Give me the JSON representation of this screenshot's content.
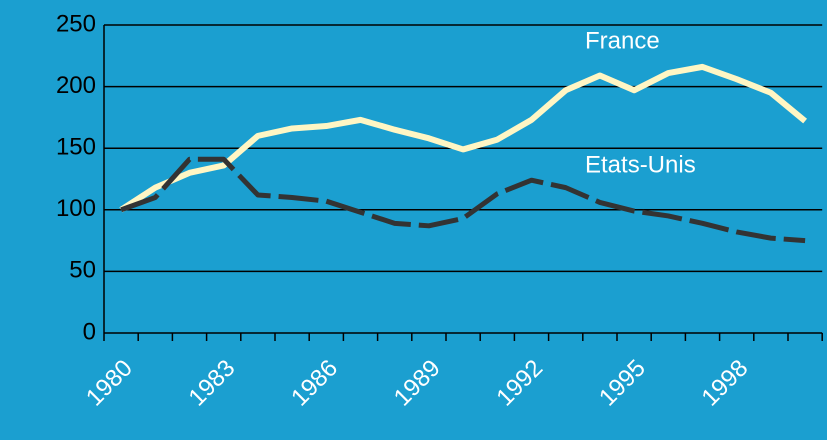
{
  "chart_data": {
    "type": "line",
    "categories": [
      "1980",
      null,
      null,
      "1983",
      null,
      null,
      "1986",
      null,
      null,
      "1989",
      null,
      null,
      "1992",
      null,
      null,
      "1995",
      null,
      null,
      "1998",
      null,
      null
    ],
    "series": [
      {
        "name": "France",
        "color": "#fff6c4",
        "values": [
          100,
          118,
          130,
          136,
          160,
          166,
          168,
          173,
          165,
          158,
          149,
          157,
          173,
          197,
          209,
          197,
          211,
          216,
          206,
          195,
          172
        ]
      },
      {
        "name": "Etats-Unis",
        "color": "#333333",
        "values": [
          100,
          110,
          141,
          141,
          112,
          110,
          107,
          98,
          89,
          87,
          93,
          113,
          124,
          118,
          106,
          99,
          95,
          89,
          82,
          77,
          75
        ]
      }
    ],
    "ylim": [
      0,
      250
    ],
    "yticks": [
      0,
      50,
      100,
      150,
      200,
      250
    ],
    "grid": true
  }
}
